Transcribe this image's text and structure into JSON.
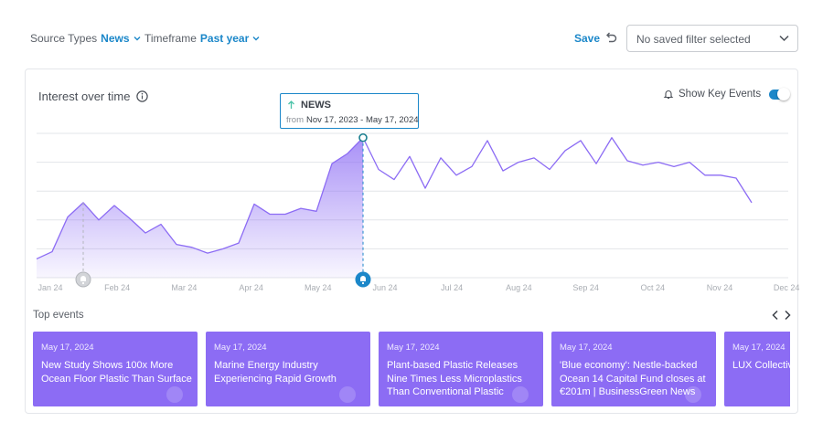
{
  "filters": {
    "source_types": {
      "label": "Source Types",
      "value": "News"
    },
    "timeframe": {
      "label": "Timeframe",
      "value": "Past year"
    }
  },
  "actions": {
    "save_label": "Save",
    "saved_filter_placeholder": "No saved filter selected"
  },
  "chart_card": {
    "title": "Interest over time",
    "show_key_events_label": "Show Key Events",
    "show_key_events_on": true
  },
  "tooltip": {
    "series": "NEWS",
    "from_label": "from",
    "range": "Nov 17, 2023 - May 17, 2024"
  },
  "colors": {
    "accent": "#1b87c9",
    "series": "#8c6cf4",
    "event_card": "#8c6cf4",
    "gridline": "#e3e5e9"
  },
  "chart_data": {
    "type": "line",
    "x_tick_labels": [
      "Jan 24",
      "Feb 24",
      "Mar 24",
      "Apr 24",
      "May 24",
      "Jun 24",
      "Jul 24",
      "Aug 24",
      "Sep 24",
      "Oct 24",
      "Nov 24",
      "Dec 24"
    ],
    "y_range": [
      0,
      100
    ],
    "grid": "horizontal",
    "series": [
      {
        "values": [
          13,
          18,
          42,
          52,
          40,
          50,
          41,
          31,
          37,
          23,
          21,
          17,
          20,
          24,
          51,
          44,
          44,
          48,
          46,
          79,
          86,
          97,
          75,
          68,
          84,
          62,
          83,
          71,
          77,
          95,
          74,
          80,
          83,
          75,
          88,
          95,
          79,
          97,
          81,
          78,
          80,
          77,
          80,
          71,
          71,
          69,
          52
        ],
        "highlighted_index": 21,
        "filled_until_index": 21
      }
    ],
    "event_markers": [
      {
        "x_index": 3,
        "style": "inactive"
      },
      {
        "x_index": 21,
        "style": "active"
      }
    ]
  },
  "top_events": {
    "title": "Top events",
    "items": [
      {
        "date": "May 17, 2024",
        "title": "New Study Shows 100x More Ocean Floor Plastic Than Surface"
      },
      {
        "date": "May 17, 2024",
        "title": "Marine Energy Industry Experiencing Rapid Growth"
      },
      {
        "date": "May 17, 2024",
        "title": "Plant-based Plastic Releases Nine Times Less Microplastics Than Conventional Plastic"
      },
      {
        "date": "May 17, 2024",
        "title": "'Blue economy': Nestle-backed Ocean 14 Capital Fund closes at €201m | BusinessGreen News"
      },
      {
        "date": "May 17, 2024",
        "title": "LUX Collective resort in Ma"
      }
    ]
  }
}
